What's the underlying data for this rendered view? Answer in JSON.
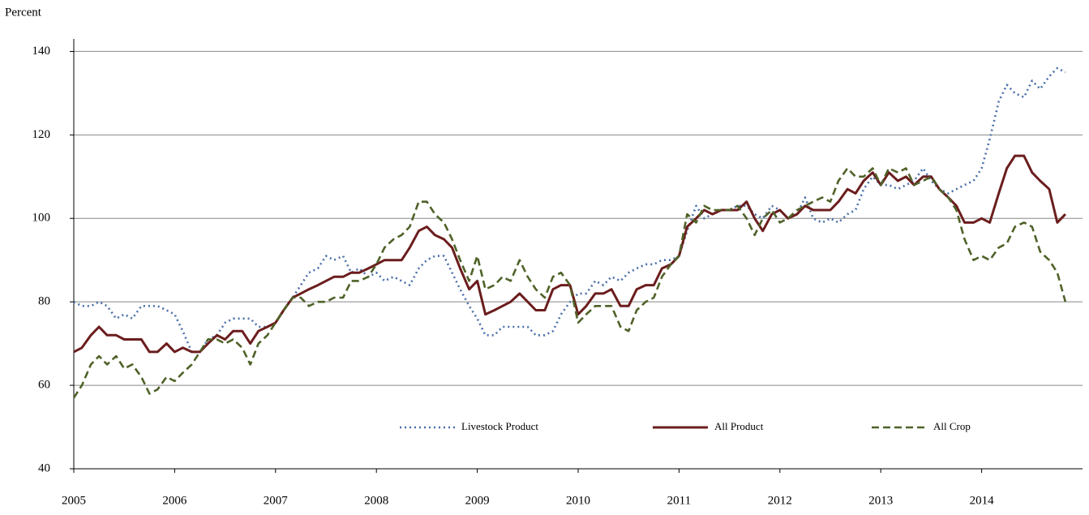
{
  "chart_data": {
    "type": "line",
    "y_label": "Percent",
    "xlim": [
      2005,
      2015
    ],
    "xticks": [
      2005,
      2006,
      2007,
      2008,
      2009,
      2010,
      2011,
      2012,
      2013,
      2014
    ],
    "ylim": [
      40,
      143
    ],
    "yticks": [
      40,
      60,
      80,
      100,
      120,
      140
    ],
    "grid": true,
    "legend": "lower center",
    "x": [
      2005.0,
      2005.08,
      2005.17,
      2005.25,
      2005.33,
      2005.42,
      2005.5,
      2005.58,
      2005.67,
      2005.75,
      2005.83,
      2005.92,
      2006.0,
      2006.08,
      2006.17,
      2006.25,
      2006.33,
      2006.42,
      2006.5,
      2006.58,
      2006.67,
      2006.75,
      2006.83,
      2006.92,
      2007.0,
      2007.08,
      2007.17,
      2007.25,
      2007.33,
      2007.42,
      2007.5,
      2007.58,
      2007.67,
      2007.75,
      2007.83,
      2007.92,
      2008.0,
      2008.08,
      2008.17,
      2008.25,
      2008.33,
      2008.42,
      2008.5,
      2008.58,
      2008.67,
      2008.75,
      2008.83,
      2008.92,
      2009.0,
      2009.08,
      2009.17,
      2009.25,
      2009.33,
      2009.42,
      2009.5,
      2009.58,
      2009.67,
      2009.75,
      2009.83,
      2009.92,
      2010.0,
      2010.08,
      2010.17,
      2010.25,
      2010.33,
      2010.42,
      2010.5,
      2010.58,
      2010.67,
      2010.75,
      2010.83,
      2010.92,
      2011.0,
      2011.08,
      2011.17,
      2011.25,
      2011.33,
      2011.42,
      2011.5,
      2011.58,
      2011.67,
      2011.75,
      2011.83,
      2011.92,
      2012.0,
      2012.08,
      2012.17,
      2012.25,
      2012.33,
      2012.42,
      2012.5,
      2012.58,
      2012.67,
      2012.75,
      2012.83,
      2012.92,
      2013.0,
      2013.08,
      2013.17,
      2013.25,
      2013.33,
      2013.42,
      2013.5,
      2013.58,
      2013.67,
      2013.75,
      2013.83,
      2013.92,
      2014.0,
      2014.08,
      2014.17,
      2014.25,
      2014.33,
      2014.42,
      2014.5,
      2014.58,
      2014.67,
      2014.75,
      2014.83
    ],
    "series": [
      {
        "name": "Livestock Product",
        "color": "#4a6fa8",
        "dash": "2,4",
        "values": [
          80,
          79,
          79,
          80,
          79,
          76,
          77,
          76,
          79,
          79,
          79,
          78,
          77,
          73,
          68,
          68,
          71,
          72,
          75,
          76,
          76,
          76,
          74,
          74,
          75,
          78,
          81,
          84,
          87,
          88,
          91,
          90,
          91,
          87,
          88,
          86,
          87,
          85,
          86,
          85,
          84,
          88,
          90,
          91,
          91,
          87,
          83,
          79,
          76,
          72,
          72,
          74,
          74,
          74,
          74,
          72,
          72,
          73,
          77,
          80,
          82,
          82,
          85,
          84,
          86,
          85,
          87,
          88,
          89,
          89,
          90,
          90,
          91,
          97,
          103,
          100,
          101,
          102,
          102,
          103,
          103,
          101,
          100,
          103,
          102,
          100,
          101,
          105,
          100,
          99,
          100,
          99,
          101,
          102,
          107,
          110,
          108,
          108,
          107,
          108,
          109,
          112,
          109,
          107,
          106,
          107,
          108,
          109,
          112,
          119,
          128,
          132,
          130,
          129,
          133,
          131,
          134,
          136,
          135
        ]
      },
      {
        "name": "All Product",
        "color": "#6b1d1d",
        "dash": "",
        "values": [
          68,
          69,
          72,
          74,
          72,
          72,
          71,
          71,
          71,
          68,
          68,
          70,
          68,
          69,
          68,
          68,
          70,
          72,
          71,
          73,
          73,
          70,
          73,
          74,
          75,
          78,
          81,
          82,
          83,
          84,
          85,
          86,
          86,
          87,
          87,
          88,
          89,
          90,
          90,
          90,
          93,
          97,
          98,
          96,
          95,
          93,
          88,
          83,
          85,
          77,
          78,
          79,
          80,
          82,
          80,
          78,
          78,
          83,
          84,
          84,
          77,
          79,
          82,
          82,
          83,
          79,
          79,
          83,
          84,
          84,
          88,
          89,
          91,
          98,
          100,
          102,
          101,
          102,
          102,
          102,
          104,
          100,
          97,
          101,
          102,
          100,
          101,
          103,
          102,
          102,
          102,
          104,
          107,
          106,
          109,
          111,
          108,
          111,
          109,
          110,
          108,
          110,
          110,
          107,
          105,
          103,
          99,
          99,
          100,
          99,
          106,
          112,
          115,
          115,
          111,
          109,
          107,
          99,
          101
        ]
      },
      {
        "name": "All Crop",
        "color": "#4f6228",
        "dash": "9,5",
        "values": [
          57,
          60,
          65,
          67,
          65,
          67,
          64,
          65,
          62,
          58,
          59,
          62,
          61,
          63,
          65,
          68,
          71,
          71,
          70,
          71,
          69,
          65,
          70,
          72,
          75,
          78,
          81,
          81,
          79,
          80,
          80,
          81,
          81,
          85,
          85,
          86,
          89,
          93,
          95,
          96,
          98,
          104,
          104,
          101,
          99,
          95,
          90,
          85,
          91,
          83,
          84,
          86,
          85,
          90,
          86,
          83,
          81,
          86,
          87,
          84,
          75,
          77,
          79,
          79,
          79,
          74,
          73,
          78,
          80,
          81,
          86,
          89,
          91,
          101,
          99,
          103,
          102,
          102,
          102,
          103,
          100,
          96,
          100,
          102,
          99,
          100,
          102,
          103,
          104,
          105,
          104,
          109,
          112,
          110,
          110,
          112,
          108,
          112,
          111,
          112,
          108,
          109,
          110,
          107,
          105,
          102,
          95,
          90,
          91,
          90,
          93,
          94,
          98,
          99,
          98,
          92,
          90,
          87,
          80
        ]
      }
    ]
  }
}
